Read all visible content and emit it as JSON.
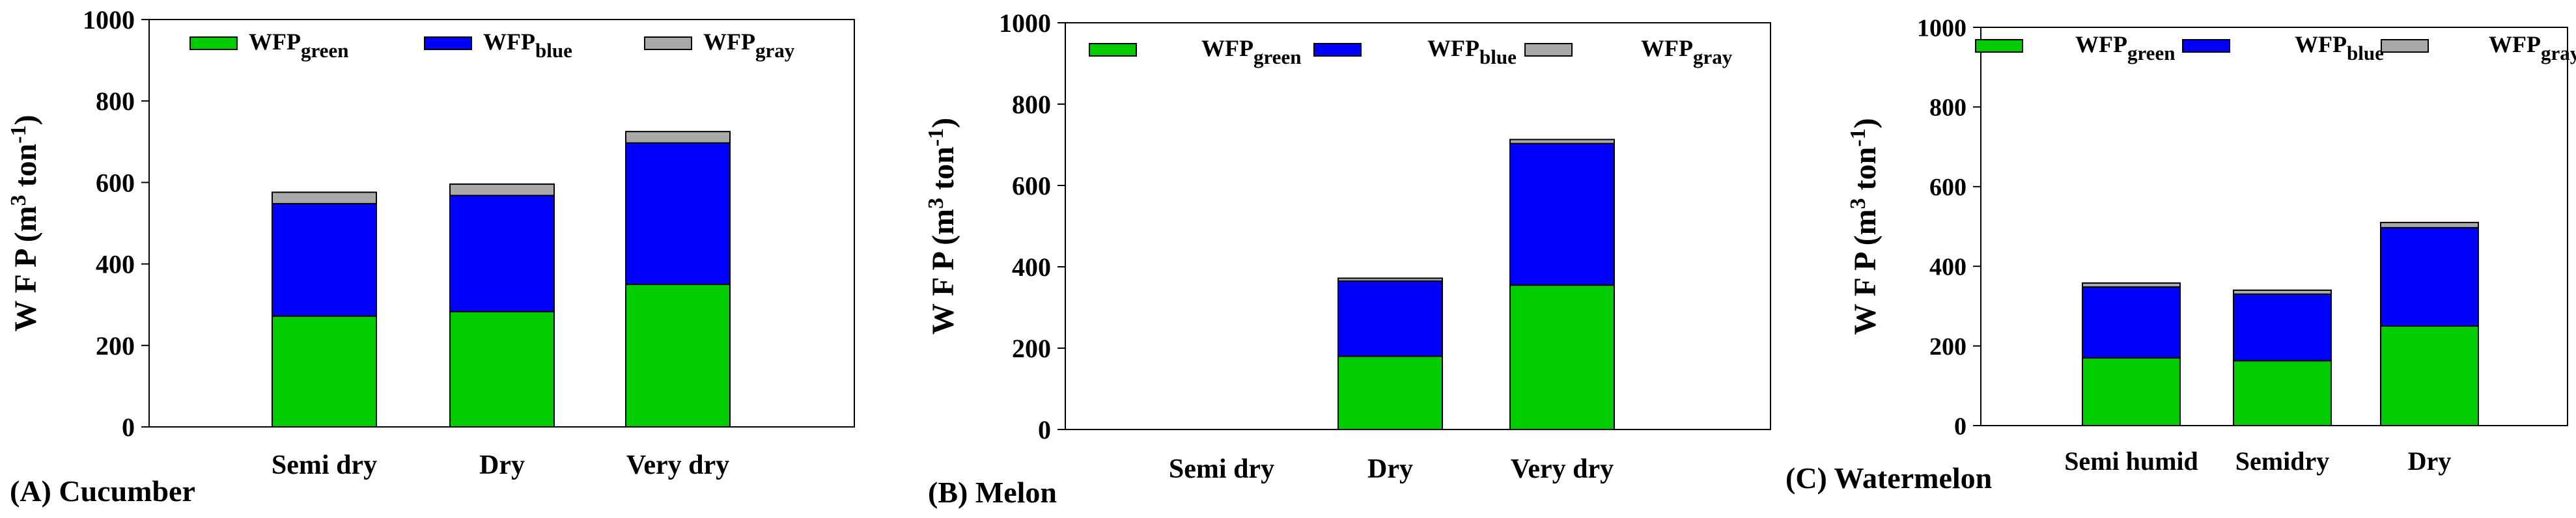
{
  "legend_labels": [
    {
      "base": "WFP",
      "sub": "green"
    },
    {
      "base": "WFP",
      "sub": "blue"
    },
    {
      "base": "WFP",
      "sub": "gray"
    }
  ],
  "colors": {
    "green": "#00cc00",
    "blue": "#0000ff",
    "gray": "#a9a9a9"
  },
  "ylabel": {
    "base": "W F P  (m",
    "sup1": "3",
    "mid": " ton",
    "sup2": "-1",
    "end": ")"
  },
  "chart_data": [
    {
      "type": "bar",
      "stacked": true,
      "panel_label": "(A) Cucumber",
      "categories": [
        "Semi dry",
        "Dry",
        "Very dry"
      ],
      "series": [
        {
          "name": "WFPgreen",
          "color_key": "green",
          "values": [
            272,
            283,
            350
          ]
        },
        {
          "name": "WFPblue",
          "color_key": "blue",
          "values": [
            276,
            285,
            347
          ]
        },
        {
          "name": "WFPgray",
          "color_key": "gray",
          "values": [
            28,
            28,
            28
          ]
        }
      ],
      "ylim": [
        0,
        1000
      ],
      "yticks": [
        0,
        200,
        400,
        600,
        800,
        1000
      ],
      "ylabel": "WFP (m3 ton-1)",
      "xlabel": ""
    },
    {
      "type": "bar",
      "stacked": true,
      "panel_label": "(B) Melon",
      "categories": [
        "Semi dry",
        "Dry",
        "Very dry"
      ],
      "series": [
        {
          "name": "WFPgreen",
          "color_key": "green",
          "values": [
            0,
            180,
            355
          ]
        },
        {
          "name": "WFPblue",
          "color_key": "blue",
          "values": [
            0,
            185,
            348
          ]
        },
        {
          "name": "WFPgray",
          "color_key": "gray",
          "values": [
            0,
            7,
            10
          ]
        }
      ],
      "ylim": [
        0,
        1000
      ],
      "yticks": [
        0,
        200,
        400,
        600,
        800,
        1000
      ],
      "ylabel": "WFP (m3 ton-1)",
      "xlabel": ""
    },
    {
      "type": "bar",
      "stacked": true,
      "panel_label": "(C) Watermelon",
      "categories": [
        "Semi humid",
        "Semidry",
        "Dry"
      ],
      "series": [
        {
          "name": "WFPgreen",
          "color_key": "green",
          "values": [
            170,
            163,
            250
          ]
        },
        {
          "name": "WFPblue",
          "color_key": "blue",
          "values": [
            178,
            167,
            247
          ]
        },
        {
          "name": "WFPgray",
          "color_key": "gray",
          "values": [
            10,
            10,
            13
          ]
        }
      ],
      "ylim": [
        0,
        1000
      ],
      "yticks": [
        0,
        200,
        400,
        600,
        800,
        1000
      ],
      "ylabel": "WFP (m3 ton-1)",
      "xlabel": ""
    }
  ]
}
